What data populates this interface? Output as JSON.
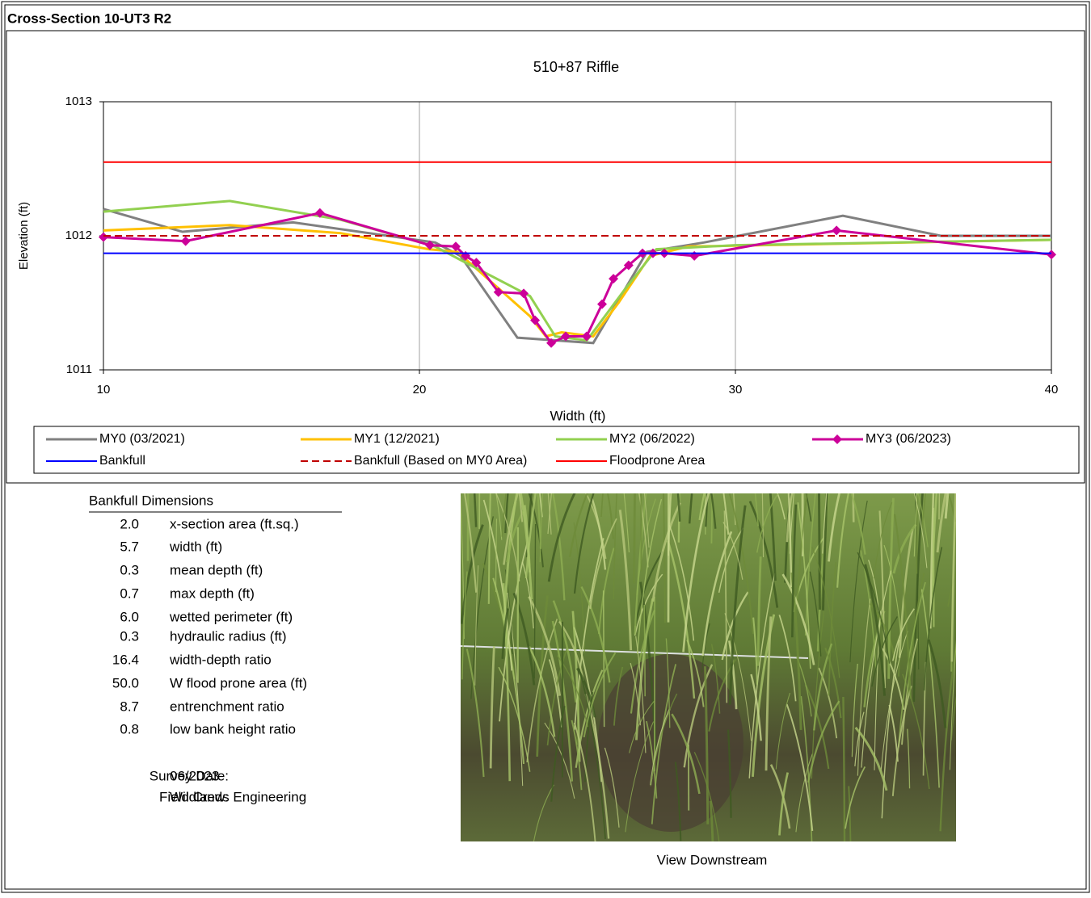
{
  "header": {
    "title": "Cross-Section 10-UT3 R2"
  },
  "chart_data": {
    "type": "line",
    "title": "510+87 Riffle",
    "xlabel": "Width (ft)",
    "ylabel": "Elevation (ft)",
    "xlim": [
      10,
      40
    ],
    "ylim": [
      1011,
      1013
    ],
    "xticks": [
      10,
      20,
      30,
      40
    ],
    "yticks": [
      1011,
      1012,
      1013
    ],
    "grid": "x",
    "series": [
      {
        "name": "MY0 (03/2021)",
        "color": "#808080",
        "x": [
          10,
          12.5,
          16,
          20.5,
          21.3,
          23.1,
          25.5,
          27.2,
          29,
          33.4,
          36.5,
          40
        ],
        "values": [
          1012.2,
          1012.03,
          1012.1,
          1011.95,
          1011.85,
          1011.24,
          1011.2,
          1011.88,
          1011.95,
          1012.15,
          1012.0,
          1012.0
        ]
      },
      {
        "name": "MY1 (12/2021)",
        "color": "#ffc000",
        "x": [
          10,
          14,
          17.5,
          20.3,
          21.2,
          23.5,
          24,
          24.5,
          25.5,
          26.3,
          27.3,
          28.5,
          40
        ],
        "values": [
          1012.04,
          1012.08,
          1012.02,
          1011.9,
          1011.88,
          1011.4,
          1011.25,
          1011.28,
          1011.25,
          1011.5,
          1011.85,
          1011.92,
          1011.97
        ]
      },
      {
        "name": "MY2 (06/2022)",
        "color": "#92d050",
        "x": [
          10,
          14,
          17.5,
          20.5,
          21.3,
          23.5,
          24.3,
          25.3,
          26.5,
          27.5,
          30,
          40
        ],
        "values": [
          1012.18,
          1012.26,
          1012.12,
          1011.92,
          1011.82,
          1011.55,
          1011.25,
          1011.22,
          1011.6,
          1011.9,
          1011.93,
          1011.97
        ]
      },
      {
        "name": "MY3 (06/2023)",
        "color": "#cc0099",
        "marker": "diamond",
        "x": [
          10,
          12.6,
          16.85,
          20.33,
          21.15,
          21.46,
          21.8,
          22.5,
          23.3,
          23.66,
          24.17,
          24.63,
          25.29,
          25.78,
          26.14,
          26.62,
          27.06,
          27.39,
          27.75,
          28.7,
          33.2,
          40
        ],
        "values": [
          1011.99,
          1011.96,
          1012.17,
          1011.93,
          1011.92,
          1011.85,
          1011.8,
          1011.58,
          1011.57,
          1011.37,
          1011.2,
          1011.25,
          1011.25,
          1011.49,
          1011.68,
          1011.78,
          1011.87,
          1011.87,
          1011.87,
          1011.85,
          1012.04,
          1011.86
        ]
      },
      {
        "name": "Bankfull",
        "color": "#0000ff",
        "x": [
          10,
          40
        ],
        "values": [
          1011.87,
          1011.87
        ]
      },
      {
        "name": "Bankfull (Based on MY0 Area)",
        "color": "#c00000",
        "dash": true,
        "x": [
          10,
          40
        ],
        "values": [
          1012.0,
          1012.0
        ]
      },
      {
        "name": "Floodprone Area",
        "color": "#ff0000",
        "x": [
          10,
          40
        ],
        "values": [
          1012.55,
          1012.55
        ]
      }
    ]
  },
  "dimensions": {
    "title": "Bankfull Dimensions",
    "rows": [
      {
        "value": "2.0",
        "label": "x-section area (ft.sq.)"
      },
      {
        "value": "5.7",
        "label": "width (ft)"
      },
      {
        "value": "0.3",
        "label": "mean depth (ft)"
      },
      {
        "value": "0.7",
        "label": "max depth (ft)"
      },
      {
        "value": "6.0",
        "label": "wetted perimeter (ft)"
      },
      {
        "value": "0.3",
        "label": "hydraulic radius (ft)"
      },
      {
        "value": "16.4",
        "label": "width-depth ratio"
      },
      {
        "value": "50.0",
        "label": "W flood prone area (ft)"
      },
      {
        "value": "8.7",
        "label": "entrenchment ratio"
      },
      {
        "value": "0.8",
        "label": "low bank height ratio"
      }
    ]
  },
  "survey": {
    "date_label": "Survey Date:",
    "date": "06/2023",
    "crew_label": "Field Crew:",
    "crew": "Wildlands Engineering"
  },
  "photo": {
    "caption": "View Downstream"
  }
}
